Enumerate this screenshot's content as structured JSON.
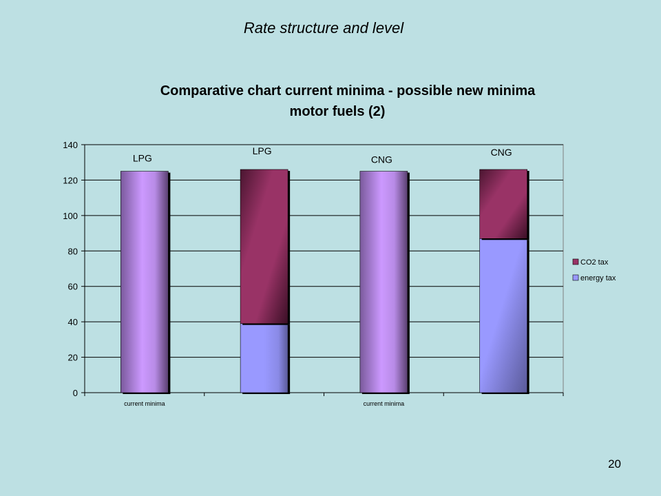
{
  "slide": {
    "title": "Rate structure and level",
    "page_number": "20"
  },
  "colors": {
    "background": "#bde0e3",
    "plot_area": "#bde0e3",
    "co2_tax": "#993366",
    "energy_tax": "#9999ff",
    "current_minima": "#cc99ff",
    "frame": "#808080",
    "gridline": "#000000"
  },
  "chart_data": {
    "type": "bar",
    "stacked": true,
    "title": "Comparative chart current minima - possible new minima motor fuels (2)",
    "title_lines": [
      "Comparative chart current minima - possible new minima",
      "motor fuels (2)"
    ],
    "categories": [
      "current minima",
      "",
      "current minima",
      ""
    ],
    "bar_labels": [
      "LPG",
      "LPG",
      "CNG",
      "CNG"
    ],
    "series": [
      {
        "name": "energy tax",
        "color": "#9999ff",
        "values": [
          125,
          39,
          125,
          87
        ]
      },
      {
        "name": "CO2 tax",
        "color": "#993366",
        "values": [
          0,
          87,
          0,
          39
        ]
      }
    ],
    "current_minima_bars": [
      0,
      2
    ],
    "ylim": [
      0,
      140
    ],
    "yticks": [
      0,
      20,
      40,
      60,
      80,
      100,
      120,
      140
    ],
    "xlabel": "",
    "ylabel": "",
    "grid": true,
    "legend_position": "right",
    "legend": [
      {
        "label": "CO2 tax",
        "color": "#993366"
      },
      {
        "label": "energy tax",
        "color": "#9999ff"
      }
    ]
  }
}
